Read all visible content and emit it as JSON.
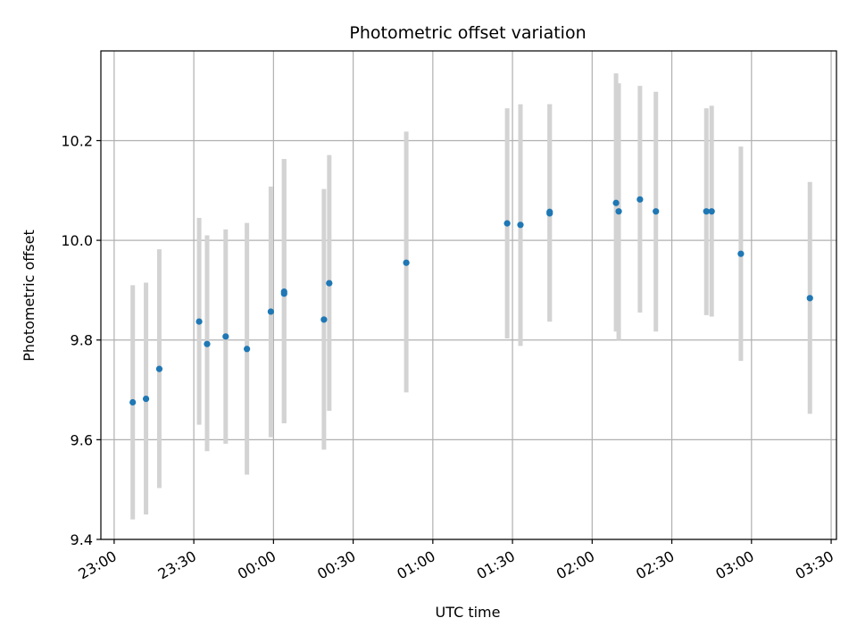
{
  "chart_data": {
    "type": "scatter",
    "title": "Photometric offset variation",
    "xlabel": "UTC time",
    "ylabel": "Photometric offset",
    "x_axis_kind": "time",
    "xlim": [
      "22:55",
      "03:32"
    ],
    "ylim": [
      9.4,
      10.38
    ],
    "grid": true,
    "x_ticks": [
      "23:00",
      "23:30",
      "00:00",
      "00:30",
      "01:00",
      "01:30",
      "02:00",
      "02:30",
      "03:00",
      "03:30"
    ],
    "y_ticks": [
      "9.4",
      "9.6",
      "9.8",
      "10.0",
      "10.2"
    ],
    "colors": {
      "point": "#1f77b4",
      "errorbar": "#d3d3d3",
      "grid": "#b0b0b0"
    },
    "points": [
      {
        "t": "23:07",
        "y": 9.675,
        "low": 9.44,
        "high": 9.91
      },
      {
        "t": "23:12",
        "y": 9.682,
        "low": 9.45,
        "high": 9.915
      },
      {
        "t": "23:17",
        "y": 9.742,
        "low": 9.503,
        "high": 9.982
      },
      {
        "t": "23:32",
        "y": 9.837,
        "low": 9.63,
        "high": 10.045
      },
      {
        "t": "23:35",
        "y": 9.792,
        "low": 9.577,
        "high": 10.01
      },
      {
        "t": "23:42",
        "y": 9.807,
        "low": 9.592,
        "high": 10.022
      },
      {
        "t": "23:50",
        "y": 9.782,
        "low": 9.53,
        "high": 10.035
      },
      {
        "t": "23:59",
        "y": 9.857,
        "low": 9.605,
        "high": 10.108
      },
      {
        "t": "00:04",
        "y": 9.893,
        "low": 9.633,
        "high": 10.163
      },
      {
        "t": "00:04",
        "y": 9.897,
        "low": 9.633,
        "high": 10.163
      },
      {
        "t": "00:19",
        "y": 9.841,
        "low": 9.58,
        "high": 10.103
      },
      {
        "t": "00:21",
        "y": 9.914,
        "low": 9.658,
        "high": 10.171
      },
      {
        "t": "00:50",
        "y": 9.955,
        "low": 9.695,
        "high": 10.218
      },
      {
        "t": "01:28",
        "y": 10.034,
        "low": 9.803,
        "high": 10.265
      },
      {
        "t": "01:33",
        "y": 10.031,
        "low": 9.788,
        "high": 10.273
      },
      {
        "t": "01:44",
        "y": 10.054,
        "low": 9.837,
        "high": 10.273
      },
      {
        "t": "01:44",
        "y": 10.057,
        "low": 9.837,
        "high": 10.273
      },
      {
        "t": "02:09",
        "y": 10.075,
        "low": 9.817,
        "high": 10.335
      },
      {
        "t": "02:10",
        "y": 10.058,
        "low": 9.8,
        "high": 10.315
      },
      {
        "t": "02:18",
        "y": 10.082,
        "low": 9.855,
        "high": 10.31
      },
      {
        "t": "02:24",
        "y": 10.058,
        "low": 9.817,
        "high": 10.298
      },
      {
        "t": "02:43",
        "y": 10.058,
        "low": 9.85,
        "high": 10.265
      },
      {
        "t": "02:45",
        "y": 10.058,
        "low": 9.847,
        "high": 10.27
      },
      {
        "t": "02:56",
        "y": 9.973,
        "low": 9.758,
        "high": 10.188
      },
      {
        "t": "03:22",
        "y": 9.884,
        "low": 9.652,
        "high": 10.117
      }
    ]
  }
}
